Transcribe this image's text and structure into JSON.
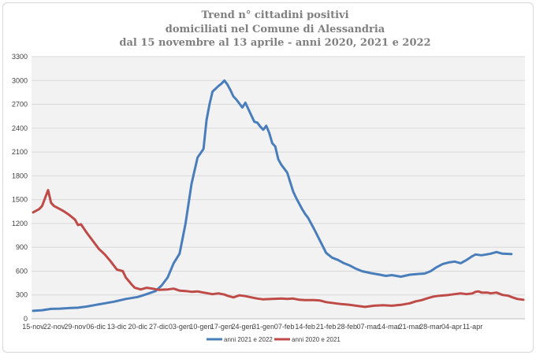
{
  "chart_data": {
    "type": "line",
    "title": [
      "Trend n° cittadini positivi",
      "domiciliati nel Comune di Alessandria",
      "dal 15 novembre al 13 aprile - anni 2020, 2021 e 2022"
    ],
    "xlabel": "",
    "ylabel": "",
    "ylim": [
      0,
      3300
    ],
    "yticks": [
      "0",
      "300",
      "600",
      "900",
      "1200",
      "1500",
      "1800",
      "2100",
      "2400",
      "2700",
      "3000",
      "3300"
    ],
    "x_tick_labels": [
      "15-nov",
      "22-nov",
      "29-nov",
      "06-dic",
      "13-dic",
      "20-dic",
      "27-dic",
      "03-gen",
      "10-gen",
      "17-gen",
      "24-gen",
      "31-gen",
      "07-feb",
      "14-feb",
      "21-feb",
      "28-feb",
      "07-mar",
      "14-mar",
      "21-mar",
      "28-mar",
      "04-apr",
      "11-apr"
    ],
    "x_days": [
      0,
      150
    ],
    "grid": "horizontal",
    "legend_position": "bottom",
    "series": [
      {
        "name": "anni 2021 e 2022",
        "color": "#4a7ebb",
        "points": [
          [
            0,
            100
          ],
          [
            3,
            108
          ],
          [
            6,
            125
          ],
          [
            9,
            128
          ],
          [
            12,
            135
          ],
          [
            15,
            140
          ],
          [
            18,
            155
          ],
          [
            21,
            175
          ],
          [
            24,
            195
          ],
          [
            27,
            215
          ],
          [
            31,
            250
          ],
          [
            35,
            275
          ],
          [
            38,
            310
          ],
          [
            41,
            350
          ],
          [
            43,
            420
          ],
          [
            45,
            520
          ],
          [
            47,
            700
          ],
          [
            49,
            820
          ],
          [
            51,
            1200
          ],
          [
            53,
            1700
          ],
          [
            55,
            2030
          ],
          [
            57,
            2140
          ],
          [
            58,
            2500
          ],
          [
            59,
            2700
          ],
          [
            60,
            2860
          ],
          [
            62,
            2930
          ],
          [
            63,
            2960
          ],
          [
            64,
            3000
          ],
          [
            65,
            2950
          ],
          [
            66,
            2880
          ],
          [
            67,
            2800
          ],
          [
            68,
            2760
          ],
          [
            70,
            2660
          ],
          [
            71,
            2720
          ],
          [
            72,
            2640
          ],
          [
            73,
            2560
          ],
          [
            74,
            2480
          ],
          [
            75,
            2470
          ],
          [
            76,
            2420
          ],
          [
            77,
            2380
          ],
          [
            78,
            2430
          ],
          [
            79,
            2340
          ],
          [
            80,
            2210
          ],
          [
            81,
            2170
          ],
          [
            82,
            2010
          ],
          [
            83,
            1940
          ],
          [
            85,
            1840
          ],
          [
            87,
            1600
          ],
          [
            88,
            1520
          ],
          [
            90,
            1380
          ],
          [
            91,
            1320
          ],
          [
            92,
            1270
          ],
          [
            94,
            1130
          ],
          [
            96,
            980
          ],
          [
            98,
            830
          ],
          [
            99,
            800
          ],
          [
            100,
            770
          ],
          [
            102,
            740
          ],
          [
            104,
            700
          ],
          [
            106,
            670
          ],
          [
            108,
            630
          ],
          [
            110,
            600
          ],
          [
            113,
            575
          ],
          [
            116,
            555
          ],
          [
            118,
            540
          ],
          [
            120,
            550
          ],
          [
            123,
            530
          ],
          [
            126,
            555
          ],
          [
            129,
            565
          ],
          [
            131,
            570
          ],
          [
            133,
            600
          ],
          [
            135,
            650
          ],
          [
            137,
            690
          ],
          [
            139,
            710
          ],
          [
            141,
            720
          ],
          [
            143,
            700
          ],
          [
            145,
            740
          ],
          [
            147,
            790
          ],
          [
            148,
            810
          ],
          [
            150,
            800
          ],
          [
            153,
            820
          ],
          [
            155,
            840
          ],
          [
            157,
            820
          ],
          [
            160,
            815
          ]
        ]
      },
      {
        "name": "anni 2020 e 2021",
        "color": "#be4b48",
        "points": [
          [
            0,
            1340
          ],
          [
            2,
            1380
          ],
          [
            3,
            1420
          ],
          [
            5,
            1620
          ],
          [
            6,
            1460
          ],
          [
            7,
            1420
          ],
          [
            9,
            1380
          ],
          [
            10,
            1360
          ],
          [
            12,
            1310
          ],
          [
            14,
            1250
          ],
          [
            15,
            1180
          ],
          [
            16,
            1190
          ],
          [
            18,
            1080
          ],
          [
            20,
            980
          ],
          [
            22,
            880
          ],
          [
            24,
            810
          ],
          [
            26,
            720
          ],
          [
            28,
            620
          ],
          [
            30,
            600
          ],
          [
            31,
            520
          ],
          [
            33,
            430
          ],
          [
            34,
            390
          ],
          [
            36,
            370
          ],
          [
            38,
            390
          ],
          [
            40,
            380
          ],
          [
            42,
            365
          ],
          [
            45,
            370
          ],
          [
            47,
            380
          ],
          [
            49,
            355
          ],
          [
            51,
            350
          ],
          [
            53,
            340
          ],
          [
            55,
            345
          ],
          [
            57,
            330
          ],
          [
            60,
            310
          ],
          [
            62,
            320
          ],
          [
            64,
            305
          ],
          [
            65,
            290
          ],
          [
            67,
            270
          ],
          [
            69,
            295
          ],
          [
            71,
            285
          ],
          [
            73,
            270
          ],
          [
            75,
            255
          ],
          [
            77,
            245
          ],
          [
            80,
            250
          ],
          [
            83,
            255
          ],
          [
            85,
            250
          ],
          [
            87,
            255
          ],
          [
            89,
            240
          ],
          [
            91,
            235
          ],
          [
            94,
            235
          ],
          [
            96,
            230
          ],
          [
            98,
            210
          ],
          [
            100,
            200
          ],
          [
            103,
            185
          ],
          [
            106,
            175
          ],
          [
            109,
            160
          ],
          [
            111,
            150
          ],
          [
            114,
            165
          ],
          [
            117,
            170
          ],
          [
            120,
            165
          ],
          [
            123,
            175
          ],
          [
            126,
            195
          ],
          [
            128,
            220
          ],
          [
            130,
            235
          ],
          [
            132,
            260
          ],
          [
            134,
            280
          ],
          [
            136,
            290
          ],
          [
            139,
            300
          ],
          [
            141,
            310
          ],
          [
            143,
            320
          ],
          [
            145,
            310
          ],
          [
            147,
            320
          ],
          [
            148,
            340
          ],
          [
            149,
            345
          ],
          [
            150,
            330
          ],
          [
            152,
            330
          ],
          [
            153,
            320
          ],
          [
            155,
            330
          ],
          [
            157,
            300
          ],
          [
            159,
            290
          ],
          [
            160,
            275
          ],
          [
            162,
            250
          ],
          [
            164,
            240
          ]
        ]
      }
    ]
  }
}
